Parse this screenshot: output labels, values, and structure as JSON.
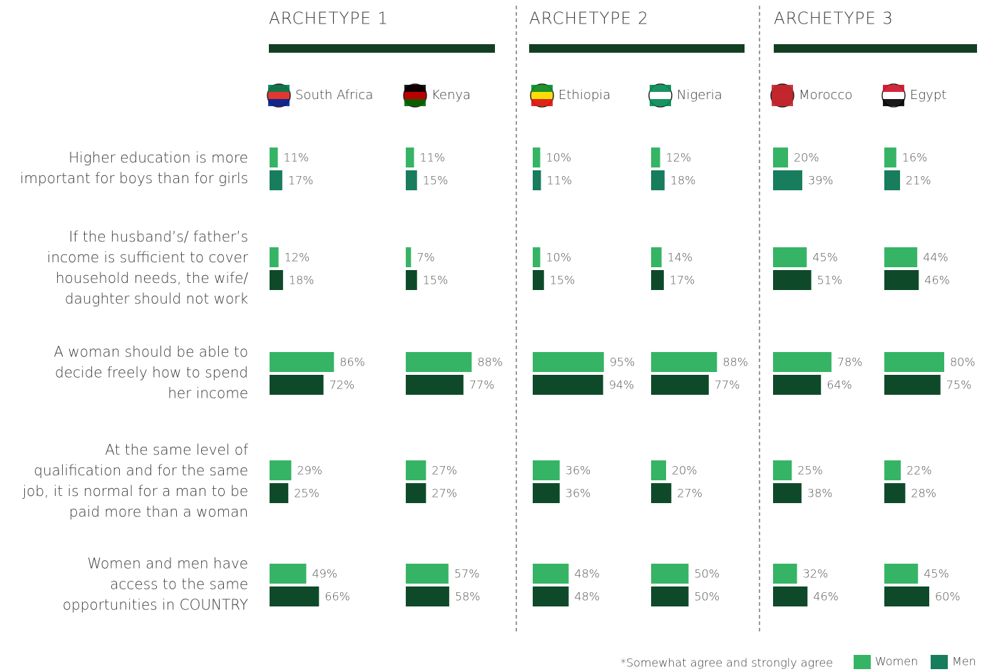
{
  "chart_data": {
    "type": "bar",
    "xlim": [
      0,
      100
    ],
    "note": "*Somewhat agree and strongly agree",
    "series": [
      {
        "name": "Women",
        "color": "#36b465"
      },
      {
        "name": "Men",
        "color": "#177d5d"
      }
    ],
    "statements": [
      {
        "lines": [
          "Higher education is more",
          "important for boys than for girls"
        ],
        "men_color": "#177d5d"
      },
      {
        "lines": [
          "If the husband’s/ father’s",
          "income is sufficient to cover",
          "household needs, the wife/",
          "daughter should not work"
        ],
        "men_color": "#0e4a29"
      },
      {
        "lines": [
          "A woman should be able to",
          "decide freely how to spend",
          "her income"
        ],
        "men_color": "#0e4a29"
      },
      {
        "lines": [
          "At the same level of",
          "qualification and for the same",
          "job, it is normal for a man to be",
          "paid more than a woman"
        ],
        "men_color": "#0e4a29"
      },
      {
        "lines": [
          "Women and men have",
          "access to the same",
          "opportunities in COUNTRY"
        ],
        "men_color": "#0e4a29"
      }
    ],
    "groups": [
      {
        "title": "ARCHETYPE 1",
        "countries": [
          {
            "name": "South Africa",
            "women": [
              11,
              12,
              86,
              29,
              49
            ],
            "women_labels": [
              "11%",
              "12%",
              "86%",
              "29%",
              "49%"
            ],
            "men": [
              17,
              18,
              72,
              25,
              66
            ],
            "men_labels": [
              "17%",
              "18%",
              "72%",
              "25%",
              "66%"
            ]
          },
          {
            "name": "Kenya",
            "women": [
              11,
              7,
              88,
              27,
              57
            ],
            "women_labels": [
              "11%",
              "7%",
              "88%",
              "27%",
              "57%"
            ],
            "men": [
              15,
              15,
              77,
              27,
              58
            ],
            "men_labels": [
              "15%",
              "15%",
              "77%",
              "27%",
              "58%"
            ]
          }
        ]
      },
      {
        "title": "ARCHETYPE 2",
        "countries": [
          {
            "name": "Ethiopia",
            "women": [
              10,
              10,
              95,
              36,
              48
            ],
            "women_labels": [
              "10%",
              "10%",
              "95%",
              "36%",
              "48%"
            ],
            "men": [
              11,
              15,
              94,
              36,
              48
            ],
            "men_labels": [
              "11%",
              "15%",
              "94%",
              "36%",
              "48%"
            ]
          },
          {
            "name": "Nigeria",
            "women": [
              12,
              14,
              88,
              20,
              50
            ],
            "women_labels": [
              "12%",
              "14%",
              "88%",
              "20%",
              "50%"
            ],
            "men": [
              18,
              17,
              77,
              27,
              50
            ],
            "men_labels": [
              "18%",
              "17%",
              "77%",
              "27%",
              "50%"
            ]
          }
        ]
      },
      {
        "title": "ARCHETYPE 3",
        "countries": [
          {
            "name": "Morocco",
            "women": [
              20,
              45,
              78,
              25,
              32
            ],
            "women_labels": [
              "20%",
              "45%",
              "78%",
              "25%",
              "32%"
            ],
            "men": [
              39,
              51,
              64,
              38,
              46
            ],
            "men_labels": [
              "39%",
              "51%",
              "64%",
              "38%",
              "46%"
            ]
          },
          {
            "name": "Egypt",
            "women": [
              16,
              44,
              80,
              22,
              45
            ],
            "women_labels": [
              "16%",
              "44%",
              "80%",
              "22%",
              "45%"
            ],
            "men": [
              21,
              46,
              75,
              28,
              60
            ],
            "men_labels": [
              "21%",
              "46%",
              "75%",
              "28%",
              "60%"
            ]
          }
        ]
      }
    ]
  }
}
